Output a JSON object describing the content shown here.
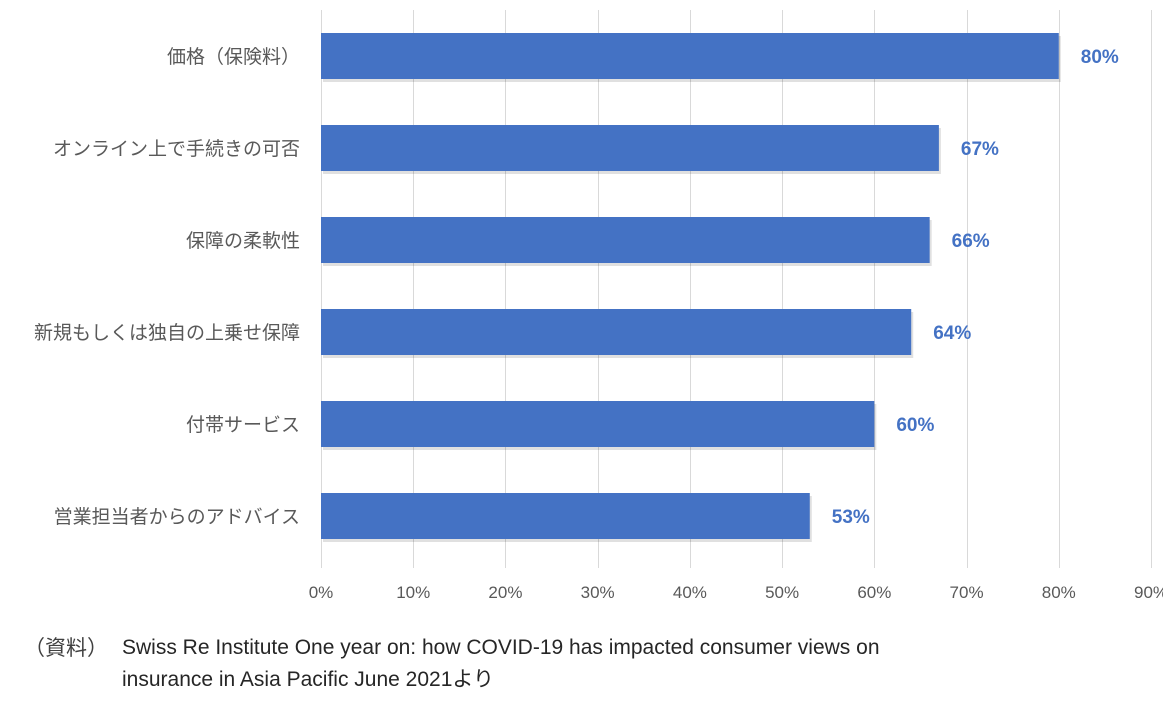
{
  "chart_data": {
    "type": "bar",
    "orientation": "horizontal",
    "categories": [
      "価格（保険料）",
      "オンライン上で手続きの可否",
      "保障の柔軟性",
      "新規もしくは独自の上乗せ保障",
      "付帯サービス",
      "営業担当者からのアドバイス"
    ],
    "values": [
      80,
      67,
      66,
      64,
      60,
      53
    ],
    "value_labels": [
      "80%",
      "67%",
      "66%",
      "64%",
      "60%",
      "53%"
    ],
    "xlim": [
      0,
      90
    ],
    "x_ticks": [
      0,
      10,
      20,
      30,
      40,
      50,
      60,
      70,
      80,
      90
    ],
    "x_tick_labels": [
      "0%",
      "10%",
      "20%",
      "30%",
      "40%",
      "50%",
      "60%",
      "70%",
      "80%",
      "90%"
    ],
    "title": "",
    "xlabel": "",
    "ylabel": "",
    "grid": "vertical",
    "legend": "none",
    "bar_color": "#4472C4",
    "label_color": "#4472C4",
    "grid_color": "#D9D9D9"
  },
  "source": {
    "prefix": "（資料）",
    "text": "Swiss Re Institute  One year on: how COVID-19 has impacted consumer views on insurance in Asia Pacific   June 2021より"
  }
}
